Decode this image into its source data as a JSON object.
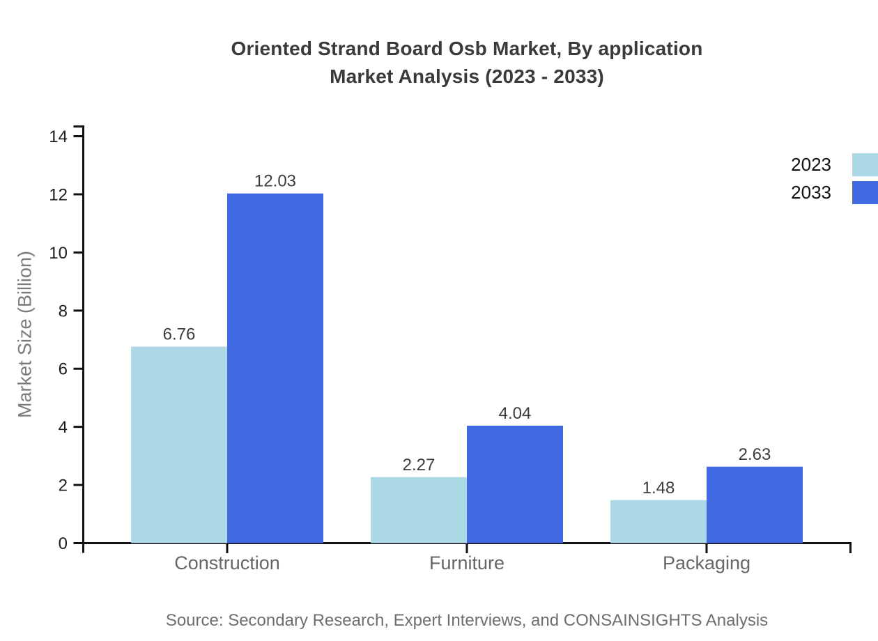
{
  "title": {
    "line1": "Oriented Strand Board Osb Market, By application",
    "line2": "Market Analysis (2023 - 2033)"
  },
  "y_axis_label": "Market Size (Billion)",
  "source_note": "Source: Secondary Research, Expert Interviews, and CONSAINSIGHTS Analysis",
  "chart_data": {
    "type": "bar",
    "title": "Oriented Strand Board Osb Market, By application Market Analysis (2023 - 2033)",
    "categories": [
      "Construction",
      "Furniture",
      "Packaging"
    ],
    "series": [
      {
        "name": "2023",
        "color": "#ADD8E6",
        "values": [
          6.76,
          2.27,
          1.48
        ]
      },
      {
        "name": "2033",
        "color": "#4169E1",
        "values": [
          12.03,
          4.04,
          2.63
        ]
      }
    ],
    "xlabel": "",
    "ylabel": "Market Size (Billion)",
    "ylim": [
      0,
      14
    ],
    "yticks": [
      0,
      2,
      4,
      6,
      8,
      10,
      12,
      14
    ],
    "grid": false,
    "legend_position": "top-right",
    "bar_value_labels": true,
    "colors": {
      "axis": "#111111",
      "value_label": "#3d3d3d",
      "category_label": "#666666",
      "tick_label": "#1c1c1c",
      "title": "#3a3a3a",
      "source": "#6e6e6e"
    }
  }
}
